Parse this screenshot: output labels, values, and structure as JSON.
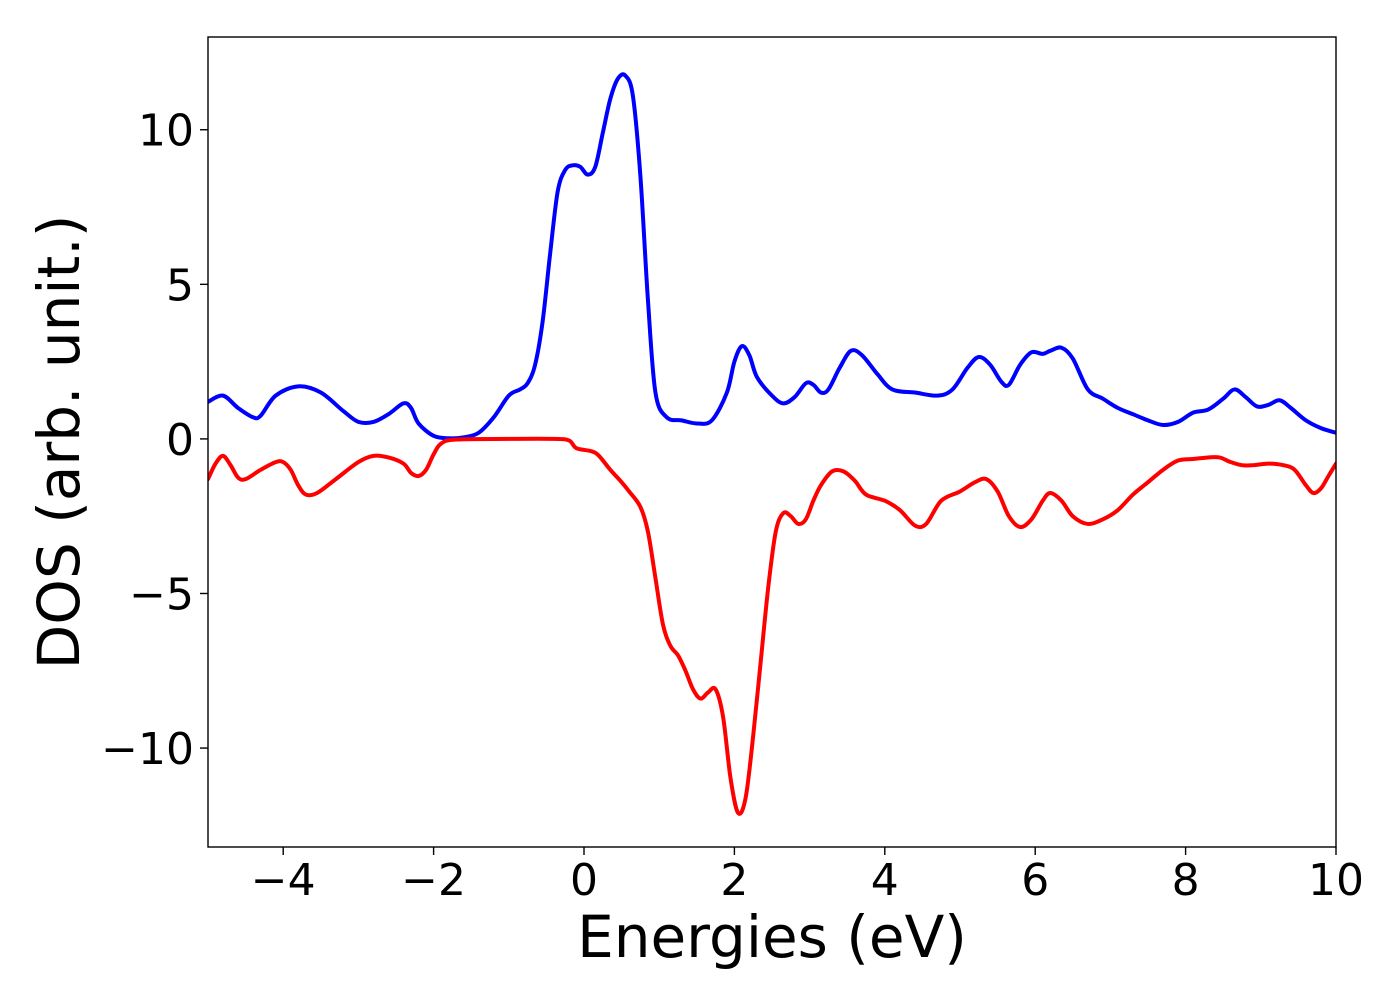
{
  "chart_data": {
    "type": "line",
    "title": "",
    "xlabel": "Energies (eV)",
    "ylabel": "DOS (arb. unit.)",
    "xlim": [
      -5,
      10
    ],
    "ylim": [
      -13.2,
      13
    ],
    "xticks": [
      -4,
      -2,
      0,
      2,
      4,
      6,
      8,
      10
    ],
    "xtick_labels": [
      "−4",
      "−2",
      "0",
      "2",
      "4",
      "6",
      "8",
      "10"
    ],
    "yticks": [
      10,
      5,
      0,
      -5,
      -10
    ],
    "ytick_labels": [
      "10",
      "5",
      "0",
      "−5",
      "−10"
    ],
    "grid": false,
    "legend": "none",
    "series": [
      {
        "color": "#0000ff",
        "points": [
          [
            -5.0,
            1.2
          ],
          [
            -4.8,
            1.4
          ],
          [
            -4.6,
            1.0
          ],
          [
            -4.4,
            0.7
          ],
          [
            -4.3,
            0.75
          ],
          [
            -4.1,
            1.4
          ],
          [
            -3.8,
            1.7
          ],
          [
            -3.5,
            1.5
          ],
          [
            -3.2,
            0.9
          ],
          [
            -3.0,
            0.55
          ],
          [
            -2.8,
            0.55
          ],
          [
            -2.6,
            0.8
          ],
          [
            -2.4,
            1.15
          ],
          [
            -2.3,
            1.0
          ],
          [
            -2.2,
            0.5
          ],
          [
            -2.0,
            0.1
          ],
          [
            -1.8,
            0.02
          ],
          [
            -1.6,
            0.05
          ],
          [
            -1.4,
            0.2
          ],
          [
            -1.2,
            0.7
          ],
          [
            -1.0,
            1.4
          ],
          [
            -0.85,
            1.6
          ],
          [
            -0.75,
            1.8
          ],
          [
            -0.65,
            2.4
          ],
          [
            -0.55,
            3.8
          ],
          [
            -0.45,
            6.0
          ],
          [
            -0.35,
            8.0
          ],
          [
            -0.25,
            8.7
          ],
          [
            -0.15,
            8.85
          ],
          [
            -0.05,
            8.8
          ],
          [
            0.05,
            8.55
          ],
          [
            0.15,
            8.8
          ],
          [
            0.25,
            9.9
          ],
          [
            0.35,
            11.0
          ],
          [
            0.45,
            11.65
          ],
          [
            0.55,
            11.75
          ],
          [
            0.65,
            11.1
          ],
          [
            0.75,
            8.5
          ],
          [
            0.85,
            4.5
          ],
          [
            0.95,
            1.5
          ],
          [
            1.1,
            0.7
          ],
          [
            1.3,
            0.6
          ],
          [
            1.5,
            0.5
          ],
          [
            1.7,
            0.6
          ],
          [
            1.9,
            1.5
          ],
          [
            2.0,
            2.5
          ],
          [
            2.1,
            3.0
          ],
          [
            2.2,
            2.7
          ],
          [
            2.3,
            2.0
          ],
          [
            2.5,
            1.4
          ],
          [
            2.65,
            1.15
          ],
          [
            2.8,
            1.35
          ],
          [
            2.95,
            1.8
          ],
          [
            3.05,
            1.75
          ],
          [
            3.15,
            1.5
          ],
          [
            3.25,
            1.6
          ],
          [
            3.4,
            2.3
          ],
          [
            3.55,
            2.85
          ],
          [
            3.7,
            2.7
          ],
          [
            3.9,
            2.1
          ],
          [
            4.1,
            1.6
          ],
          [
            4.4,
            1.5
          ],
          [
            4.7,
            1.4
          ],
          [
            4.9,
            1.6
          ],
          [
            5.1,
            2.3
          ],
          [
            5.25,
            2.65
          ],
          [
            5.4,
            2.4
          ],
          [
            5.55,
            1.85
          ],
          [
            5.65,
            1.75
          ],
          [
            5.8,
            2.4
          ],
          [
            5.95,
            2.8
          ],
          [
            6.1,
            2.75
          ],
          [
            6.2,
            2.85
          ],
          [
            6.35,
            2.95
          ],
          [
            6.5,
            2.6
          ],
          [
            6.7,
            1.6
          ],
          [
            6.9,
            1.3
          ],
          [
            7.1,
            1.0
          ],
          [
            7.3,
            0.8
          ],
          [
            7.5,
            0.6
          ],
          [
            7.7,
            0.45
          ],
          [
            7.9,
            0.55
          ],
          [
            8.1,
            0.85
          ],
          [
            8.3,
            0.95
          ],
          [
            8.5,
            1.3
          ],
          [
            8.65,
            1.6
          ],
          [
            8.8,
            1.35
          ],
          [
            8.95,
            1.05
          ],
          [
            9.1,
            1.1
          ],
          [
            9.25,
            1.25
          ],
          [
            9.4,
            1.0
          ],
          [
            9.6,
            0.6
          ],
          [
            9.8,
            0.35
          ],
          [
            10.0,
            0.2
          ]
        ]
      },
      {
        "color": "#ff0000",
        "points": [
          [
            -5.0,
            -1.3
          ],
          [
            -4.9,
            -0.8
          ],
          [
            -4.8,
            -0.55
          ],
          [
            -4.7,
            -0.85
          ],
          [
            -4.6,
            -1.25
          ],
          [
            -4.5,
            -1.3
          ],
          [
            -4.3,
            -1.0
          ],
          [
            -4.1,
            -0.75
          ],
          [
            -4.0,
            -0.75
          ],
          [
            -3.9,
            -1.0
          ],
          [
            -3.8,
            -1.5
          ],
          [
            -3.7,
            -1.8
          ],
          [
            -3.55,
            -1.75
          ],
          [
            -3.3,
            -1.3
          ],
          [
            -3.0,
            -0.75
          ],
          [
            -2.8,
            -0.55
          ],
          [
            -2.6,
            -0.6
          ],
          [
            -2.4,
            -0.8
          ],
          [
            -2.3,
            -1.1
          ],
          [
            -2.2,
            -1.2
          ],
          [
            -2.1,
            -1.0
          ],
          [
            -2.0,
            -0.5
          ],
          [
            -1.9,
            -0.15
          ],
          [
            -1.7,
            -0.02
          ],
          [
            -1.0,
            0.0
          ],
          [
            -0.4,
            0.0
          ],
          [
            -0.2,
            -0.05
          ],
          [
            -0.1,
            -0.3
          ],
          [
            0.1,
            -0.4
          ],
          [
            0.2,
            -0.55
          ],
          [
            0.35,
            -1.0
          ],
          [
            0.5,
            -1.4
          ],
          [
            0.6,
            -1.7
          ],
          [
            0.75,
            -2.2
          ],
          [
            0.85,
            -3.0
          ],
          [
            0.95,
            -4.5
          ],
          [
            1.05,
            -6.0
          ],
          [
            1.15,
            -6.7
          ],
          [
            1.25,
            -7.0
          ],
          [
            1.35,
            -7.5
          ],
          [
            1.45,
            -8.1
          ],
          [
            1.55,
            -8.4
          ],
          [
            1.65,
            -8.2
          ],
          [
            1.75,
            -8.1
          ],
          [
            1.85,
            -9.0
          ],
          [
            1.95,
            -11.0
          ],
          [
            2.05,
            -12.1
          ],
          [
            2.15,
            -11.6
          ],
          [
            2.25,
            -9.6
          ],
          [
            2.35,
            -7.2
          ],
          [
            2.45,
            -4.8
          ],
          [
            2.55,
            -3.0
          ],
          [
            2.65,
            -2.4
          ],
          [
            2.75,
            -2.5
          ],
          [
            2.85,
            -2.75
          ],
          [
            2.95,
            -2.6
          ],
          [
            3.05,
            -2.0
          ],
          [
            3.15,
            -1.5
          ],
          [
            3.3,
            -1.05
          ],
          [
            3.45,
            -1.05
          ],
          [
            3.6,
            -1.35
          ],
          [
            3.75,
            -1.8
          ],
          [
            4.0,
            -2.0
          ],
          [
            4.2,
            -2.3
          ],
          [
            4.4,
            -2.8
          ],
          [
            4.55,
            -2.75
          ],
          [
            4.75,
            -2.0
          ],
          [
            5.0,
            -1.7
          ],
          [
            5.2,
            -1.4
          ],
          [
            5.35,
            -1.3
          ],
          [
            5.5,
            -1.7
          ],
          [
            5.65,
            -2.5
          ],
          [
            5.8,
            -2.85
          ],
          [
            5.95,
            -2.6
          ],
          [
            6.1,
            -2.0
          ],
          [
            6.2,
            -1.75
          ],
          [
            6.35,
            -2.0
          ],
          [
            6.5,
            -2.5
          ],
          [
            6.7,
            -2.75
          ],
          [
            6.9,
            -2.6
          ],
          [
            7.1,
            -2.3
          ],
          [
            7.3,
            -1.8
          ],
          [
            7.5,
            -1.4
          ],
          [
            7.7,
            -1.0
          ],
          [
            7.9,
            -0.7
          ],
          [
            8.1,
            -0.65
          ],
          [
            8.3,
            -0.6
          ],
          [
            8.45,
            -0.6
          ],
          [
            8.6,
            -0.75
          ],
          [
            8.75,
            -0.85
          ],
          [
            8.9,
            -0.85
          ],
          [
            9.1,
            -0.8
          ],
          [
            9.3,
            -0.85
          ],
          [
            9.45,
            -1.0
          ],
          [
            9.6,
            -1.5
          ],
          [
            9.7,
            -1.75
          ],
          [
            9.8,
            -1.6
          ],
          [
            9.9,
            -1.2
          ],
          [
            10.0,
            -0.8
          ]
        ]
      }
    ]
  }
}
